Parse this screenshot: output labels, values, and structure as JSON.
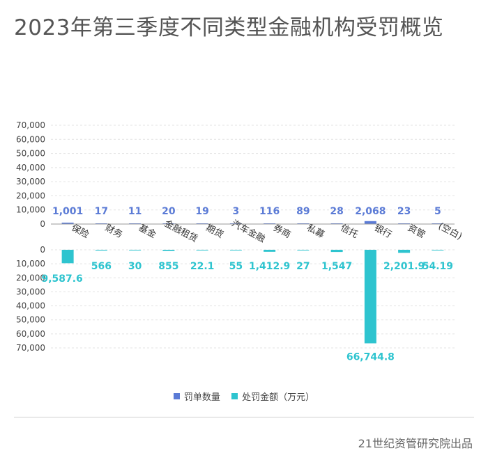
{
  "title": "2023年第三季度不同类型金融机构受罚概览",
  "source": "21世纪资管研究院出品",
  "colors": {
    "count": "#5b7bd6",
    "amount": "#2ec4cf",
    "grid": "#e3e3e3",
    "axis": "#999999"
  },
  "chart_data": {
    "type": "bar",
    "categories": [
      "保险",
      "财务",
      "基金",
      "金融租赁",
      "期货",
      "汽车金融",
      "券商",
      "私募",
      "信托",
      "银行",
      "资管",
      "(空白)"
    ],
    "series": [
      {
        "name": "罚单数量",
        "values": [
          1001,
          17,
          11,
          20,
          19,
          3,
          116,
          89,
          28,
          2068,
          23,
          5
        ],
        "labels": [
          "1,001",
          "17",
          "11",
          "20",
          "19",
          "3",
          "116",
          "89",
          "28",
          "2,068",
          "23",
          "5"
        ]
      },
      {
        "name": "处罚金额（万元）",
        "values": [
          9587.6,
          566,
          30,
          855,
          22.1,
          55,
          1412.9,
          27,
          1547,
          66744.8,
          2201.9,
          54.19
        ],
        "labels": [
          "9,587.6",
          "566",
          "30",
          "855",
          "22.1",
          "55",
          "1,412.9",
          "27",
          "1,547",
          "66,744.8",
          "2,201.9",
          "54.19"
        ]
      }
    ],
    "top_axis": {
      "ylim": [
        0,
        70000
      ],
      "ticks": [
        "0",
        "10,000",
        "20,000",
        "30,000",
        "40,000",
        "50,000",
        "60,000",
        "70,000"
      ]
    },
    "bottom_axis": {
      "ylim": [
        0,
        70000
      ],
      "inverted": true,
      "ticks": [
        "0",
        "10,000",
        "20,000",
        "30,000",
        "40,000",
        "50,000",
        "60,000",
        "70,000"
      ]
    },
    "grid": true,
    "legend": "bottom-center"
  }
}
